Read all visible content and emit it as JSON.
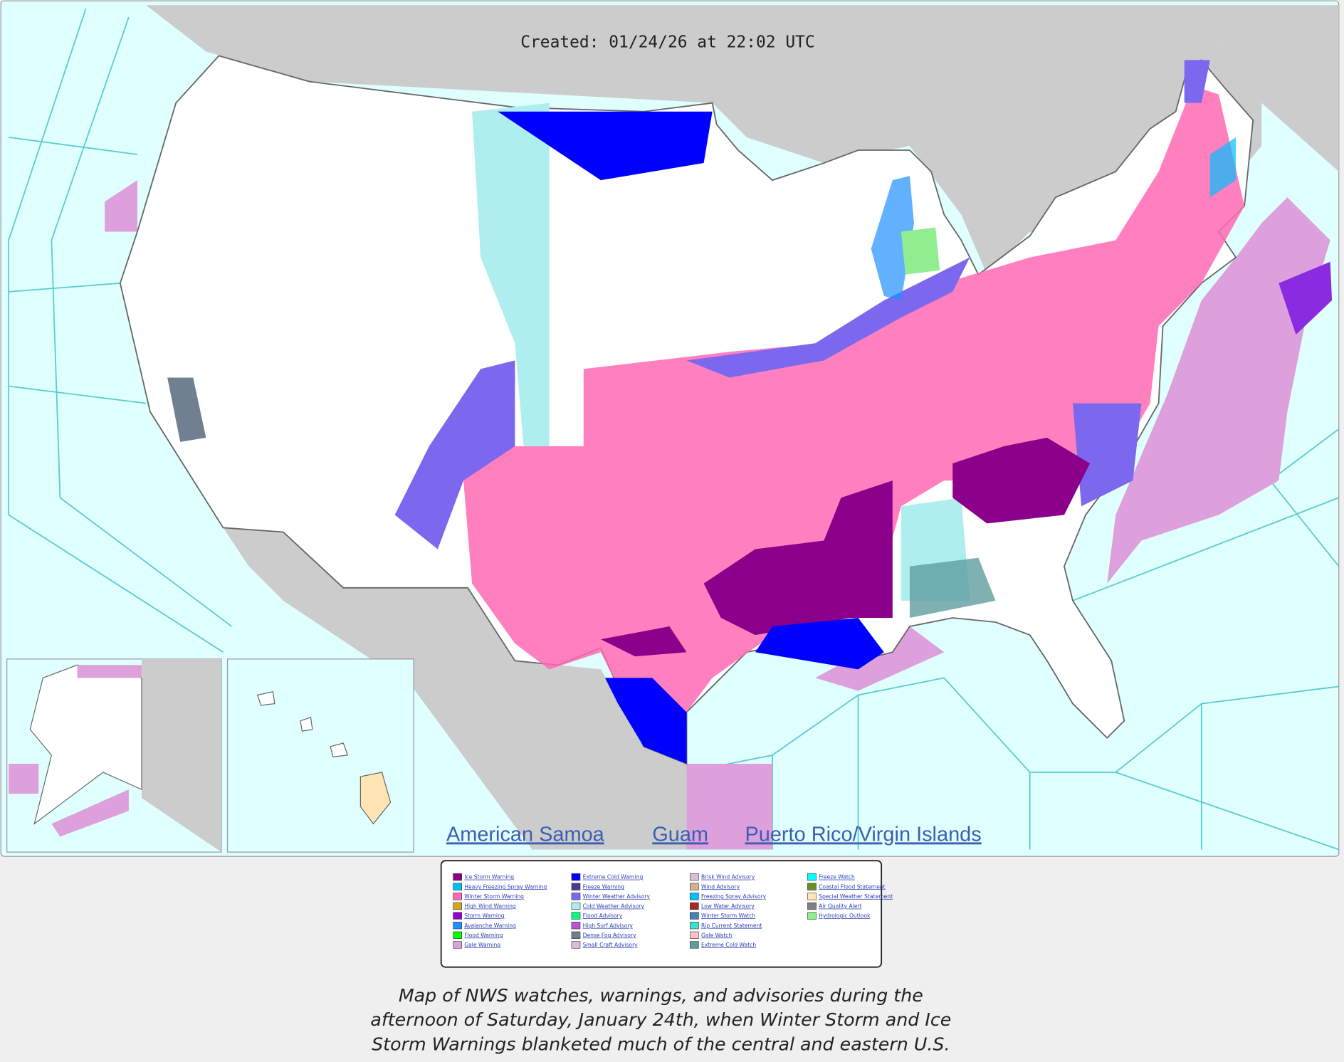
{
  "header": {
    "created": "Created: 01/24/26 at 22:02 UTC"
  },
  "links": [
    "American Samoa",
    "Guam",
    "Puerto Rico/Virgin Islands"
  ],
  "legend": {
    "columns": [
      {
        "items": [
          {
            "label": "Ice Storm Warning",
            "color": "#8b008b"
          },
          {
            "label": "Heavy Freezing Spray Warning",
            "color": "#00bfff"
          },
          {
            "label": "Winter Storm Warning",
            "color": "#ff69b4"
          },
          {
            "label": "High Wind Warning",
            "color": "#daa520"
          },
          {
            "label": "Storm Warning",
            "color": "#9400d3"
          },
          {
            "label": "Avalanche Warning",
            "color": "#1e90ff"
          },
          {
            "label": "Flood Warning",
            "color": "#00ff00"
          },
          {
            "label": "Gale Warning",
            "color": "#dda0dd"
          }
        ]
      },
      {
        "items": [
          {
            "label": "Extreme Cold Warning",
            "color": "#0000ff"
          },
          {
            "label": "Freeze Warning",
            "color": "#483d8b"
          },
          {
            "label": "Winter Weather Advisory",
            "color": "#7b68ee"
          },
          {
            "label": "Cold Weather Advisory",
            "color": "#afeeee"
          },
          {
            "label": "Flood Advisory",
            "color": "#00ff7f"
          },
          {
            "label": "High Surf Advisory",
            "color": "#ba55d3"
          },
          {
            "label": "Dense Fog Advisory",
            "color": "#708090"
          },
          {
            "label": "Small Craft Advisory",
            "color": "#d8bfd8"
          }
        ]
      },
      {
        "items": [
          {
            "label": "Brisk Wind Advisory",
            "color": "#d8bfd8"
          },
          {
            "label": "Wind Advisory",
            "color": "#d2b48c"
          },
          {
            "label": "Freezing Spray Advisory",
            "color": "#00bfff"
          },
          {
            "label": "Low Water Advisory",
            "color": "#a52a2a"
          },
          {
            "label": "Winter Storm Watch",
            "color": "#4682b4"
          },
          {
            "label": "Rip Current Statement",
            "color": "#40e0d0"
          },
          {
            "label": "Gale Watch",
            "color": "#ffc0cb"
          },
          {
            "label": "Extreme Cold Watch",
            "color": "#5f9ea0"
          }
        ]
      },
      {
        "items": [
          {
            "label": "Freeze Watch",
            "color": "#00ffff"
          },
          {
            "label": "Coastal Flood Statement",
            "color": "#6b8e23"
          },
          {
            "label": "Special Weather Statement",
            "color": "#ffe4b5"
          },
          {
            "label": "Air Quality Alert",
            "color": "#808080"
          },
          {
            "label": "Hydrologic Outlook",
            "color": "#90ee90"
          }
        ]
      }
    ]
  },
  "caption": [
    "Map of NWS watches, warnings, and advisories during the",
    "afternoon of Saturday, January 24th, when Winter Storm and Ice",
    "Storm Warnings blanketed much of the central and eastern U.S."
  ]
}
